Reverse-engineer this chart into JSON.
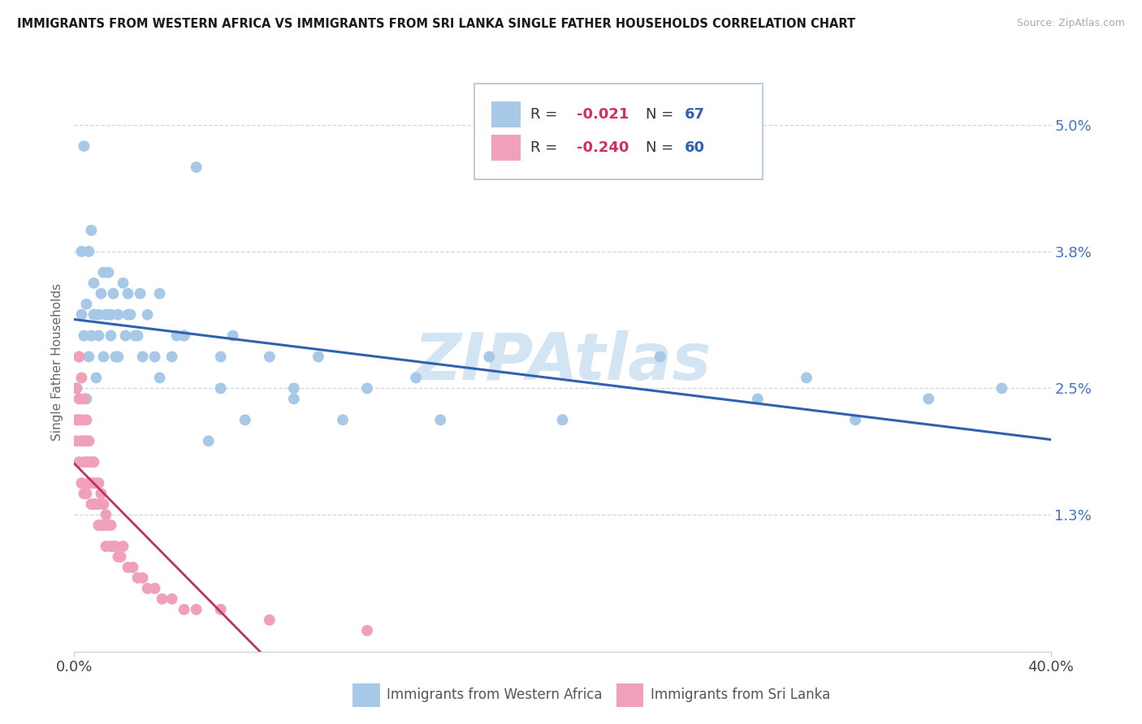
{
  "title": "IMMIGRANTS FROM WESTERN AFRICA VS IMMIGRANTS FROM SRI LANKA SINGLE FATHER HOUSEHOLDS CORRELATION CHART",
  "source": "Source: ZipAtlas.com",
  "ylabel": "Single Father Households",
  "series1_label": "Immigrants from Western Africa",
  "series1_R": "-0.021",
  "series1_N": "67",
  "series1_color": "#a8c8e8",
  "series1_trend_color": "#3060b0",
  "series2_label": "Immigrants from Sri Lanka",
  "series2_R": "-0.240",
  "series2_N": "60",
  "series2_color": "#f0a0b8",
  "series2_trend_color": "#c03060",
  "series2_trend_color_dashed": "#f0a0b8",
  "watermark": "ZIPAtlas",
  "watermark_color": "#cce0f0",
  "background_color": "#ffffff",
  "grid_color": "#c8d8e8",
  "xmin": 0.0,
  "xmax": 0.4,
  "ymin": 0.0,
  "ymax": 0.055,
  "yticks": [
    0.013,
    0.025,
    0.038,
    0.05
  ],
  "ytick_labels": [
    "1.3%",
    "2.5%",
    "3.8%",
    "5.0%"
  ],
  "series1_x": [
    0.001,
    0.002,
    0.003,
    0.003,
    0.004,
    0.005,
    0.005,
    0.006,
    0.007,
    0.007,
    0.008,
    0.009,
    0.01,
    0.011,
    0.012,
    0.013,
    0.014,
    0.015,
    0.016,
    0.017,
    0.018,
    0.02,
    0.021,
    0.022,
    0.023,
    0.025,
    0.027,
    0.028,
    0.03,
    0.033,
    0.035,
    0.04,
    0.042,
    0.045,
    0.05,
    0.055,
    0.06,
    0.065,
    0.07,
    0.08,
    0.09,
    0.1,
    0.11,
    0.12,
    0.15,
    0.17,
    0.2,
    0.24,
    0.28,
    0.3,
    0.32,
    0.35,
    0.38,
    0.004,
    0.006,
    0.008,
    0.01,
    0.012,
    0.015,
    0.018,
    0.022,
    0.026,
    0.035,
    0.045,
    0.06,
    0.09,
    0.14
  ],
  "series1_y": [
    0.025,
    0.028,
    0.032,
    0.038,
    0.03,
    0.024,
    0.033,
    0.028,
    0.04,
    0.03,
    0.032,
    0.026,
    0.03,
    0.034,
    0.028,
    0.032,
    0.036,
    0.03,
    0.034,
    0.028,
    0.032,
    0.035,
    0.03,
    0.034,
    0.032,
    0.03,
    0.034,
    0.028,
    0.032,
    0.028,
    0.034,
    0.028,
    0.03,
    0.03,
    0.046,
    0.02,
    0.025,
    0.03,
    0.022,
    0.028,
    0.024,
    0.028,
    0.022,
    0.025,
    0.022,
    0.028,
    0.022,
    0.028,
    0.024,
    0.026,
    0.022,
    0.024,
    0.025,
    0.048,
    0.038,
    0.035,
    0.032,
    0.036,
    0.032,
    0.028,
    0.032,
    0.03,
    0.026,
    0.03,
    0.028,
    0.025,
    0.026
  ],
  "series2_x": [
    0.001,
    0.001,
    0.001,
    0.002,
    0.002,
    0.002,
    0.002,
    0.003,
    0.003,
    0.003,
    0.003,
    0.004,
    0.004,
    0.004,
    0.004,
    0.005,
    0.005,
    0.005,
    0.005,
    0.006,
    0.006,
    0.006,
    0.007,
    0.007,
    0.007,
    0.008,
    0.008,
    0.008,
    0.009,
    0.009,
    0.01,
    0.01,
    0.01,
    0.011,
    0.011,
    0.012,
    0.012,
    0.013,
    0.013,
    0.014,
    0.015,
    0.015,
    0.016,
    0.017,
    0.018,
    0.019,
    0.02,
    0.022,
    0.024,
    0.026,
    0.028,
    0.03,
    0.033,
    0.036,
    0.04,
    0.045,
    0.05,
    0.06,
    0.08,
    0.12
  ],
  "series2_y": [
    0.025,
    0.022,
    0.02,
    0.028,
    0.024,
    0.022,
    0.018,
    0.026,
    0.022,
    0.02,
    0.016,
    0.024,
    0.02,
    0.018,
    0.015,
    0.022,
    0.02,
    0.018,
    0.015,
    0.02,
    0.018,
    0.016,
    0.018,
    0.016,
    0.014,
    0.018,
    0.016,
    0.014,
    0.016,
    0.014,
    0.016,
    0.014,
    0.012,
    0.015,
    0.012,
    0.014,
    0.012,
    0.013,
    0.01,
    0.012,
    0.012,
    0.01,
    0.01,
    0.01,
    0.009,
    0.009,
    0.01,
    0.008,
    0.008,
    0.007,
    0.007,
    0.006,
    0.006,
    0.005,
    0.005,
    0.004,
    0.004,
    0.004,
    0.003,
    0.002
  ]
}
